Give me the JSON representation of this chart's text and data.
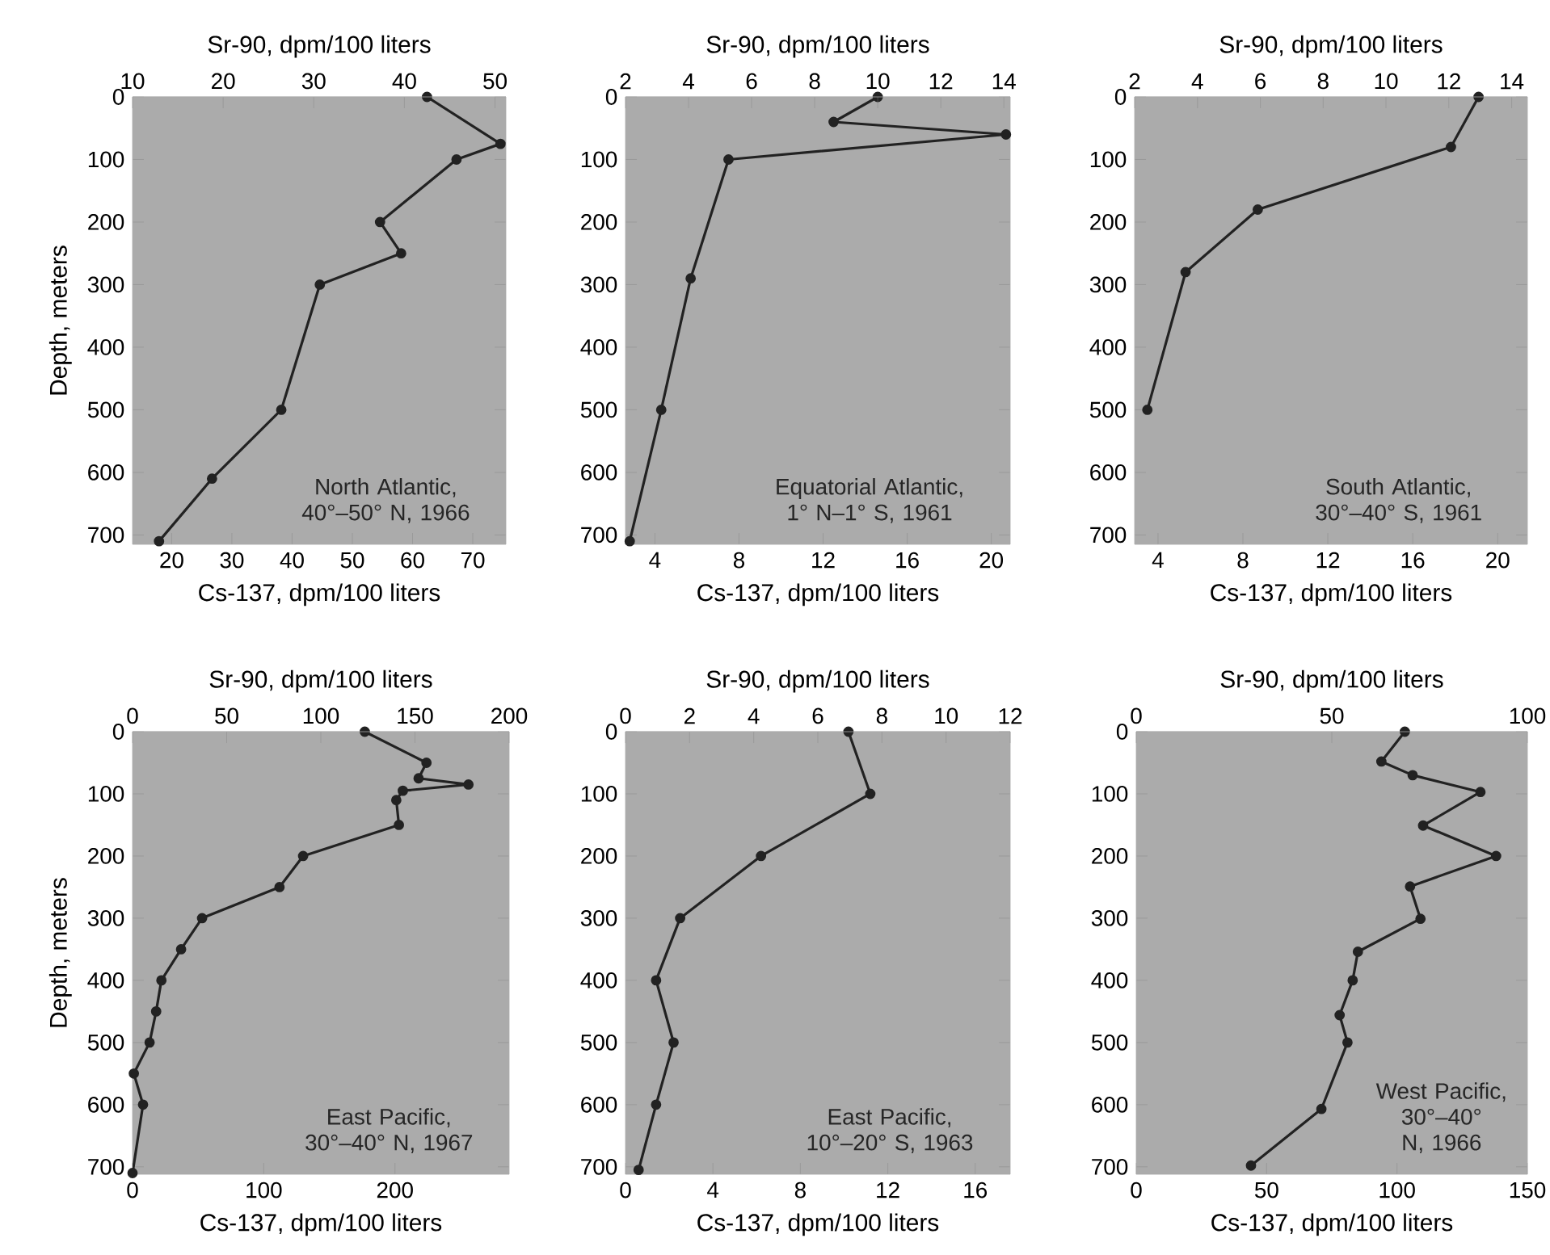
{
  "chart_data": [
    {
      "type": "line",
      "title": "North Atlantic, 40°–50° N, 1966",
      "xlabel": "Cs-137, dpm/100 liters",
      "x2label": "Sr-90, dpm/100 liters",
      "ylabel": "Depth, meters",
      "xlim": [
        13.5,
        75.5
      ],
      "xticks": [
        20,
        30,
        40,
        50,
        60,
        70
      ],
      "x2lim": [
        10,
        51.2
      ],
      "x2ticks": [
        10,
        20,
        30,
        40,
        50
      ],
      "ylim": [
        715,
        0
      ],
      "yticks": [
        0,
        100,
        200,
        300,
        400,
        500,
        600,
        700
      ],
      "marker": "circle",
      "series": [
        {
          "color": "#222222",
          "x": [
            62.4,
            74.6,
            67.3,
            54.6,
            58.1,
            44.6,
            38.2,
            26.7,
            17.9
          ],
          "values": [
            0,
            75,
            100,
            200,
            250,
            300,
            500,
            610,
            710
          ]
        }
      ]
    },
    {
      "type": "line",
      "title": "Equatorial Atlantic, 1° N–1° S, 1961",
      "xlabel": "Cs-137, dpm/100 liters",
      "x2label": "Sr-90, dpm/100 liters",
      "xlim": [
        2.6,
        20.9
      ],
      "xticks": [
        4,
        8,
        12,
        16,
        20
      ],
      "x2lim": [
        2,
        14.2
      ],
      "x2ticks": [
        2,
        4,
        6,
        8,
        10,
        12,
        14
      ],
      "ylim": [
        715,
        0
      ],
      "yticks": [
        0,
        100,
        200,
        300,
        400,
        500,
        600,
        700
      ],
      "marker": "circle",
      "series": [
        {
          "color": "#222222",
          "x": [
            14.6,
            12.5,
            20.7,
            7.5,
            5.7,
            4.3,
            2.8
          ],
          "values": [
            0,
            40,
            60,
            100,
            290,
            500,
            710
          ]
        }
      ]
    },
    {
      "type": "line",
      "title": "South Atlantic, 30°–40° S, 1961",
      "xlabel": "Cs-137, dpm/100 liters",
      "x2label": "Sr-90, dpm/100 liters",
      "xlim": [
        2.9,
        21.4
      ],
      "xticks": [
        4,
        8,
        12,
        16,
        20
      ],
      "x2lim": [
        2,
        14.5
      ],
      "x2ticks": [
        2,
        4,
        6,
        8,
        10,
        12,
        14
      ],
      "ylim": [
        715,
        0
      ],
      "yticks": [
        0,
        100,
        200,
        300,
        400,
        500,
        600,
        700
      ],
      "marker": "circle",
      "series": [
        {
          "color": "#222222",
          "x": [
            19.1,
            17.8,
            8.7,
            5.3,
            3.5
          ],
          "values": [
            0,
            80,
            180,
            280,
            500
          ]
        }
      ]
    },
    {
      "type": "line",
      "title": "East Pacific, 30°–40° N, 1967",
      "xlabel": "Cs-137, dpm/100 liters",
      "x2label": "Sr-90, dpm/100 liters",
      "ylabel": "Depth, meters",
      "xlim": [
        0,
        287
      ],
      "xticks": [
        0,
        100,
        200
      ],
      "x2lim": [
        0,
        200
      ],
      "x2ticks": [
        0,
        50,
        100,
        150,
        200
      ],
      "ylim": [
        712,
        0
      ],
      "yticks": [
        0,
        100,
        200,
        300,
        400,
        500,
        600,
        700
      ],
      "marker": "circle",
      "series": [
        {
          "color": "#222222",
          "x": [
            177,
            224,
            218,
            256,
            206,
            201,
            203,
            130,
            112,
            53,
            37,
            22,
            18,
            13,
            1,
            8,
            0
          ],
          "values": [
            0,
            50,
            75,
            85,
            95,
            110,
            150,
            200,
            250,
            300,
            350,
            400,
            450,
            500,
            550,
            600,
            710
          ]
        }
      ]
    },
    {
      "type": "line",
      "title": "East Pacific, 10°–20° S, 1963",
      "xlabel": "Cs-137, dpm/100 liters",
      "x2label": "Sr-90, dpm/100 liters",
      "xlim": [
        0,
        17.6
      ],
      "xticks": [
        0,
        4,
        8,
        12,
        16
      ],
      "x2lim": [
        0,
        12
      ],
      "x2ticks": [
        0,
        2,
        4,
        6,
        8,
        10,
        12
      ],
      "ylim": [
        712,
        0
      ],
      "yticks": [
        0,
        100,
        200,
        300,
        400,
        500,
        600,
        700
      ],
      "marker": "circle",
      "series": [
        {
          "color": "#222222",
          "x": [
            10.2,
            11.2,
            6.2,
            2.5,
            1.4,
            2.2,
            1.4,
            0.6
          ],
          "values": [
            0,
            100,
            200,
            300,
            400,
            500,
            600,
            705
          ]
        }
      ]
    },
    {
      "type": "line",
      "title": "West Pacific, 30°–40° N, 1966",
      "xlabel": "Cs-137, dpm/100 liters",
      "x2label": "Sr-90, dpm/100 liters",
      "xlim": [
        0,
        150
      ],
      "xticks": [
        0,
        50,
        100,
        150
      ],
      "x2lim": [
        0,
        100
      ],
      "x2ticks": [
        0,
        50,
        100
      ],
      "ylim": [
        712,
        0
      ],
      "yticks": [
        0,
        100,
        200,
        300,
        400,
        500,
        600,
        700
      ],
      "marker": "circle",
      "series": [
        {
          "color": "#222222",
          "x": [
            103,
            94,
            106,
            132,
            110,
            138,
            105,
            109,
            85,
            83,
            78,
            81,
            71,
            44
          ],
          "values": [
            0,
            48,
            70,
            97,
            151,
            200,
            249,
            301,
            354,
            400,
            456,
            500,
            607,
            698
          ]
        }
      ]
    }
  ]
}
